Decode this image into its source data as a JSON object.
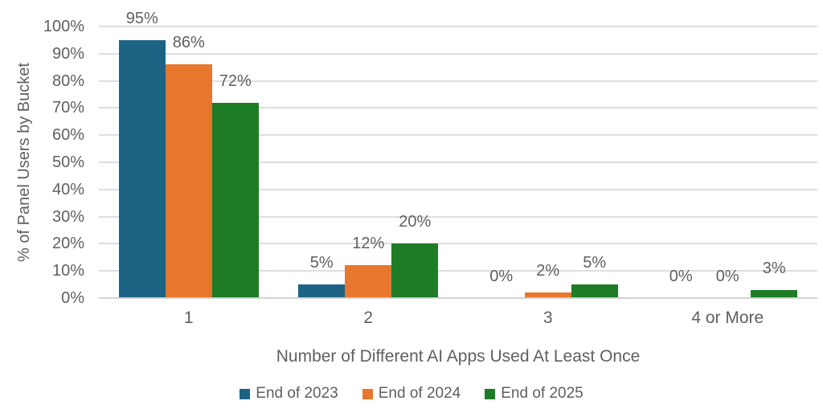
{
  "chart_data": {
    "type": "bar",
    "title": "",
    "categories": [
      "1",
      "2",
      "3",
      "4 or More"
    ],
    "series": [
      {
        "name": "End of 2023",
        "color": "#1d6484",
        "values": [
          95,
          5,
          0,
          0
        ]
      },
      {
        "name": "End of 2024",
        "color": "#e8772d",
        "values": [
          86,
          12,
          2,
          0
        ]
      },
      {
        "name": "End of 2025",
        "color": "#1e7b26",
        "values": [
          72,
          20,
          5,
          3
        ]
      }
    ],
    "xlabel": "Number of Different AI Apps Used At Least Once",
    "ylabel": "% of Panel Users by Bucket",
    "ylim": [
      0,
      100
    ],
    "ytick_step": 10,
    "ytick_suffix": "%",
    "data_label_suffix": "%",
    "grid": true,
    "legend_position": "bottom"
  },
  "palette": {
    "text": "#5f5f5f",
    "gridline": "#dedede",
    "baseline": "#d2d2d2",
    "background": "#ffffff"
  }
}
